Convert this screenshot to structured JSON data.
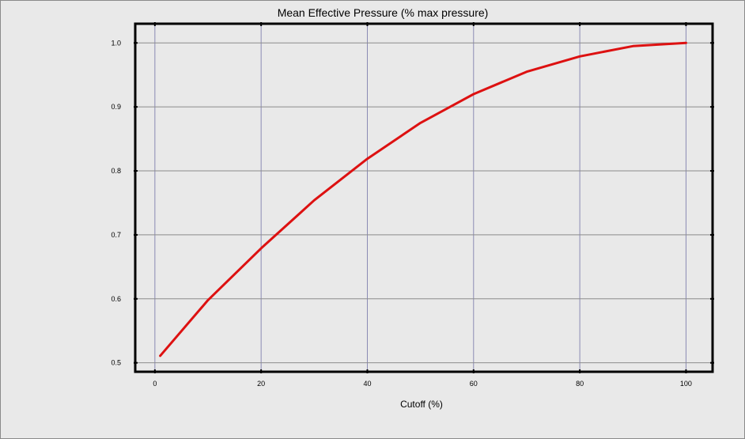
{
  "chart_data": {
    "type": "line",
    "title": "Mean Effective Pressure (% max pressure)",
    "xlabel": "Cutoff (%)",
    "ylabel": "",
    "xlim": [
      -3.7,
      105
    ],
    "ylim": [
      0.486,
      1.03
    ],
    "xticks": [
      0,
      20,
      40,
      60,
      80,
      100
    ],
    "yticks": [
      0.5,
      0.6,
      0.7,
      0.8,
      0.9,
      1.0
    ],
    "xtick_labels": [
      "0",
      "20",
      "40",
      "60",
      "80",
      "100"
    ],
    "ytick_labels": [
      "0.5",
      "0.6",
      "0.7",
      "0.8",
      "0.9",
      "1.0"
    ],
    "grid": true,
    "legend": "none",
    "colors": {
      "line": "#dd1111",
      "vgrid": "#8a8ab4",
      "hgrid": "#8c8c8c",
      "plot_bg": "#e9e9e9",
      "border": "#000000"
    },
    "series": [
      {
        "x": [
          1,
          10,
          20,
          30,
          40,
          50,
          60,
          70,
          80,
          90,
          100
        ],
        "values": [
          0.511,
          0.598,
          0.679,
          0.754,
          0.819,
          0.875,
          0.92,
          0.955,
          0.979,
          0.995,
          1.0
        ]
      }
    ]
  }
}
